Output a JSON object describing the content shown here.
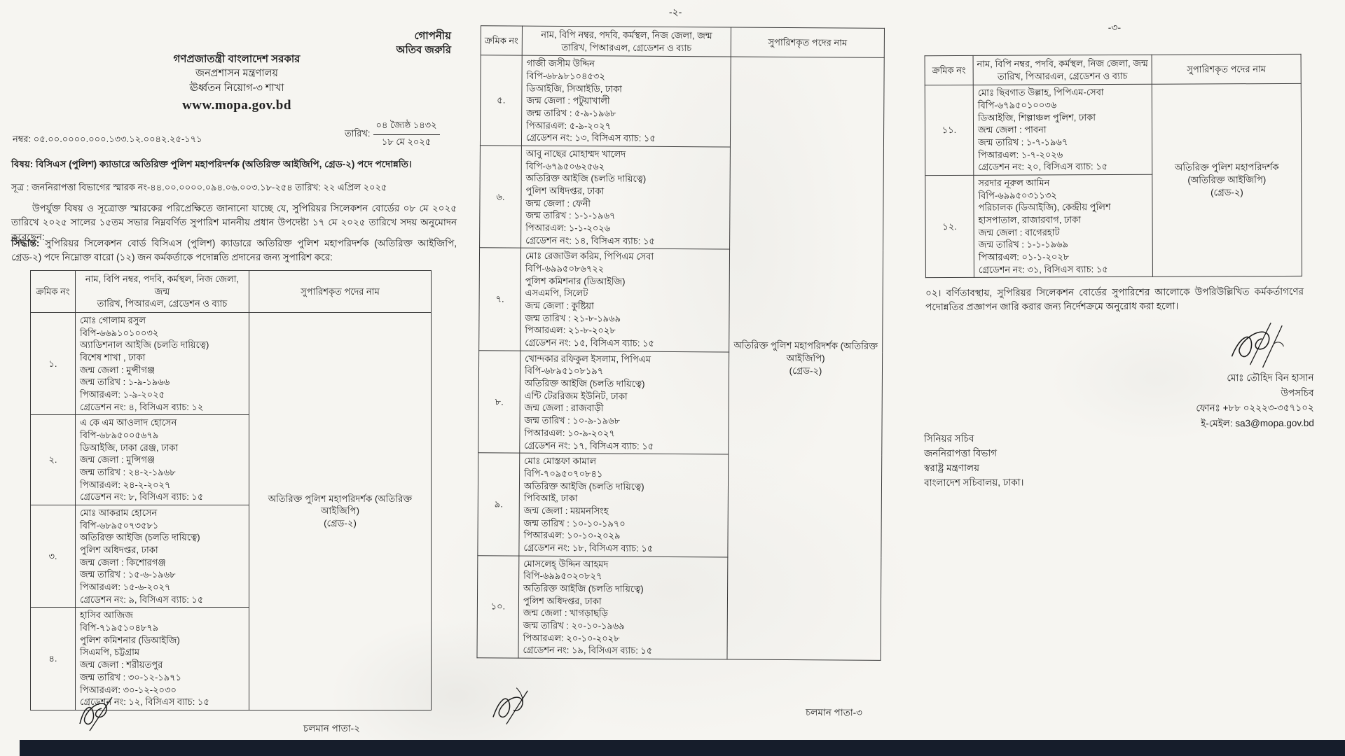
{
  "doc": {
    "classification": {
      "line1": "গোপনীয়",
      "line2": "অতিব জরুরি"
    },
    "letterhead": {
      "government": "গণপ্রজাতন্ত্রী বাংলাদেশ সরকার",
      "ministry": "জনপ্রশাসন মন্ত্রণালয়",
      "branch": "ঊর্ধ্বতন নিয়োগ-৩ শাখা",
      "website": "www.mopa.gov.bd"
    },
    "memo_no": "নম্বর: ০৫.০০.০০০০.০০০.১৩৩.১২.০০৪২.২৫-১৭১",
    "date_label": "তারিখ:",
    "date_bangla": "০৪ জ্যৈষ্ঠ ১৪৩২",
    "date_gregorian": "১৮ মে ২০২৫",
    "subject": "বিষয়: বিসিএস (পুলিশ) ক্যাডারে অতিরিক্ত পুলিশ মহাপরিদর্শক (অতিরিক্ত আইজিপি, গ্রেড-২) পদে পদোন্নতি।",
    "reference": "সূত্র : জননিরাপত্তা বিভাগের স্মারক নং-৪৪.০০.০০০০.০৯৪.০৬.০০৩.১৮-২৫৪ তারিখ: ২২ এপ্রিল ২০২৫",
    "opening_para": "উপর্যুক্ত বিষয় ও সূত্রোক্ত স্মারকের পরিপ্রেক্ষিতে জানানো যাচ্ছে যে, সুপিরিয়র সিলেকশন বোর্ডের ০৮ মে ২০২৫ তারিখে ২০২৫ সালের ১৫তম সভার নিম্নবর্ণিত সুপারিশ মাননীয় প্রধান উপদেষ্টা ১৭ মে ২০২৫ তারিখে সদয় অনুমোদন করেছেন:",
    "decision_label": "সিদ্ধান্ত:",
    "decision_text": " সুপিরিয়র সিলেকশন বোর্ড বিসিএস (পুলিশ) ক্যাডারে অতিরিক্ত পুলিশ মহাপরিদর্শক (অতিরিক্ত আইজিপি, গ্রেড-২) পদে নিম্নোক্ত বারো (১২) জন  কর্মকর্তাকে পদোন্নতি প্রদানের জন্য সুপারিশ করে:",
    "closing_para": "০২। বর্ণিতাবস্থায়, সুপিরিয়র সিলেকশন বোর্ডের সুপারিশের আলোকে উপরিউল্লিখিত কর্মকর্তাগণের পদোন্নতির প্রজ্ঞাপন জারি করার জন্য নির্দেশক্রমে অনুরোধ করা হলো।",
    "page2_label": "-২-",
    "page3_label": "-৩-",
    "continuation_page2": "চলমান পাতা-২",
    "continuation_page3": "চলমান পাতা-৩"
  },
  "table": {
    "col_serial": "ক্রমিক নং",
    "col_details": "নাম, বিপি নম্বর, পদবি, কর্মস্থল, নিজ জেলা, জন্ম\nতারিখ, পিআরএল, গ্রেডেশন ও ব্যাচ",
    "col_post": "সুপারিশকৃত পদের নাম",
    "recommended_post": "অতিরিক্ত পুলিশ মহাপরিদর্শক (অতিরিক্ত আইজিপি)\n(গ্রেড-২)"
  },
  "officers": [
    {
      "serial": "১.",
      "lines": [
        "মোঃ গোলাম রসুল",
        "বিপি-৬৬৯১০১০০৩২",
        "অ্যাডিশনাল আইজি (চলতি দায়িত্বে)",
        "বিশেষ শাখা , ঢাকা",
        "জন্ম জেলা : মুন্সীগঞ্জ",
        "জন্ম তারিখ : ১-৯-১৯৬৬",
        "পিআরএল: ১-৯-২০২৫",
        "গ্রেডেশন নং: ৪, বিসিএস ব্যাচ: ১২"
      ]
    },
    {
      "serial": "২.",
      "lines": [
        "এ কে এম আওলাদ হোসেন",
        "বিপি-৬৮৯৫০০৫৬৭৯",
        "ডিআইজি, ঢাকা রেঞ্জ, ঢাকা",
        "জন্ম জেলা :  মুন্সিগঞ্জ",
        "জন্ম তারিখ : ২৪-২-১৯৬৮",
        "পিআরএল: ২৪-২-২০২৭",
        "গ্রেডেশন নং: ৮, বিসিএস ব্যাচ: ১৫"
      ]
    },
    {
      "serial": "৩.",
      "lines": [
        "মোঃ আকরাম হোসেন",
        "বিপি-৬৮৯৫০৭৩৫৮১",
        "অতিরিক্ত আইজি (চলতি দায়িত্বে)",
        "পুলিশ অধিদপ্তর, ঢাকা",
        "জন্ম জেলা : কিশোরগঞ্জ",
        "জন্ম তারিখ : ১৫-৬-১৯৬৮",
        "পিআরএল: ১৫-৬-২০২৭",
        "গ্রেডেশন নং: ৯, বিসিএস ব্যাচ: ১৫"
      ]
    },
    {
      "serial": "৪.",
      "lines": [
        "হাসিব আজিজ",
        "বিপি-৭১৯৫১০৪৮৭৯",
        "পুলিশ কমিশনার (ডিআইজি)",
        "সিএমপি, চট্টগ্রাম",
        "জন্ম জেলা : শরীয়তপুর",
        "জন্ম তারিখ : ৩০-১২-১৯৭১",
        "পিআরএল: ৩০-১২-২০৩০",
        "গ্রেডেশন নং: ১২, বিসিএস ব্যাচ: ১৫"
      ]
    },
    {
      "serial": "৫.",
      "lines": [
        "গাজী জসীম উদ্দিন",
        "বিপি-৬৮৯৮১০৪৫৩২",
        "ডিআইজি, সিআইডি, ঢাকা",
        "জন্ম জেলা : পটুয়াখালী",
        "জন্ম তারিখ : ৫-৯-১৯৬৮",
        "পিআরএল: ৫-৯-২০২৭",
        "গ্রেডেশন নং: ১৩, বিসিএস ব্যাচ: ১৫"
      ]
    },
    {
      "serial": "৬.",
      "lines": [
        "আবু নাছের মোহাম্মদ খালেদ",
        "বিপি-৬৭৯৫০৬২৫৬২",
        "অতিরিক্ত আইজি (চলতি দায়িত্বে)",
        "পুলিশ অধিদপ্তর, ঢাকা",
        "জন্ম জেলা : ফেনী",
        "জন্ম তারিখ : ১-১-১৯৬৭",
        "পিআরএল: ১-১-২০২৬",
        "গ্রেডেশন নং: ১৪, বিসিএস ব্যাচ: ১৫"
      ]
    },
    {
      "serial": "৭.",
      "lines": [
        "মোঃ রেজাউল করিম, পিপিএম সেবা",
        "বিপি-৬৯৯৫০৮৬৭২২",
        "পুলিশ কমিশনার (ডিআইজি)",
        "এসএমপি, সিলেট",
        "জন্ম জেলা : কুষ্টিয়া",
        "জন্ম তারিখ : ২১-৮-১৯৬৯",
        "পিআরএল: ২১-৮-২০২৮",
        "গ্রেডেশন নং: ১৫, বিসিএস ব্যাচ: ১৫"
      ]
    },
    {
      "serial": "৮.",
      "lines": [
        "খোন্দকার রফিকুল ইসলাম, পিপিএম",
        "বিপি-৬৮৯৫১০৮১৯৭",
        "অতিরিক্ত আইজি (চলতি দায়িত্বে)",
        "এন্টি টেররিজম ইউনিট, ঢাকা",
        "জন্ম জেলা : রাজবাড়ী",
        "জন্ম তারিখ : ১০-৯-১৯৬৮",
        "পিআরএল: ১০-৯-২০২৭",
        "গ্রেডেশন নং: ১৭, বিসিএস ব্যাচ: ১৫"
      ]
    },
    {
      "serial": "৯.",
      "lines": [
        "মোঃ মোস্তফা কামাল",
        "বিপি-৭০৯৫০৭০৮৪১",
        "অতিরিক্ত আইজি (চলতি দায়িত্বে)",
        "পিবিআই, ঢাকা",
        "জন্ম জেলা : ময়মনসিংহ",
        "জন্ম তারিখ : ১০-১০-১৯৭০",
        "পিআরএল: ১০-১০-২০২৯",
        "গ্রেডেশন নং: ১৮, বিসিএস ব্যাচ: ১৫"
      ]
    },
    {
      "serial": "১০.",
      "lines": [
        "মোসলেহ্ উদ্দিন আহমদ",
        "বিপি-৬৯৯৫০২০৮২৭",
        "অতিরিক্ত আইজি (চলতি দায়িত্বে)",
        "পুলিশ অধিদপ্তর, ঢাকা",
        "জন্ম জেলা :  খাগড়াছড়ি",
        "জন্ম তারিখ : ২০-১০-১৯৬৯",
        "পিআরএল: ২০-১০-২০২৮",
        "গ্রেডেশন নং: ১৯, বিসিএস ব্যাচ: ১৫"
      ]
    },
    {
      "serial": "১১.",
      "lines": [
        "মোঃ ছিবগাত উল্লাহ, পিপিএম-সেবা",
        "বিপি-৬৭৯৫০১০০৩৬",
        "ডিআইজি, শিল্পাঞ্চল পুলিশ, ঢাকা",
        "জন্ম জেলা : পাবনা",
        "জন্ম তারিখ : ১-৭-১৯৬৭",
        "পিআরএল: ১-৭-২০২৬",
        "গ্রেডেশন নং: ২০, বিসিএস ব্যাচ: ১৫"
      ]
    },
    {
      "serial": "১২.",
      "lines": [
        "সরদার নূরুল আমিন",
        "বিপি-৬৯৯৫০৩১১৩২",
        "পরিচালক (ডিআইজি), কেন্দ্রীয় পুলিশ",
        "হাসপাতাল, রাজারবাগ, ঢাকা",
        "জন্ম জেলা : বাগেরহাট",
        "জন্ম তারিখ : ১-১-১৯৬৯",
        "পিআরএল: ০১-১-২০২৮",
        "গ্রেডেশন নং: ৩১, বিসিএস ব্যাচ: ১৫"
      ]
    }
  ],
  "signature": {
    "name": "মোঃ তৌহিদ বিন হাসান",
    "title": "উপসচিব",
    "phone": "ফোনঃ +৮৮ ০২২২৩-৩৫৭১০২",
    "email": "ই-মেইল: sa3@mopa.gov.bd"
  },
  "recipient": {
    "line1": "সিনিয়র সচিব",
    "line2": "জননিরাপত্তা বিভাগ",
    "line3": "স্বরাষ্ট্র মন্ত্রণালয়",
    "line4": "বাংলাদেশ সচিবালয়, ঢাকা।"
  }
}
